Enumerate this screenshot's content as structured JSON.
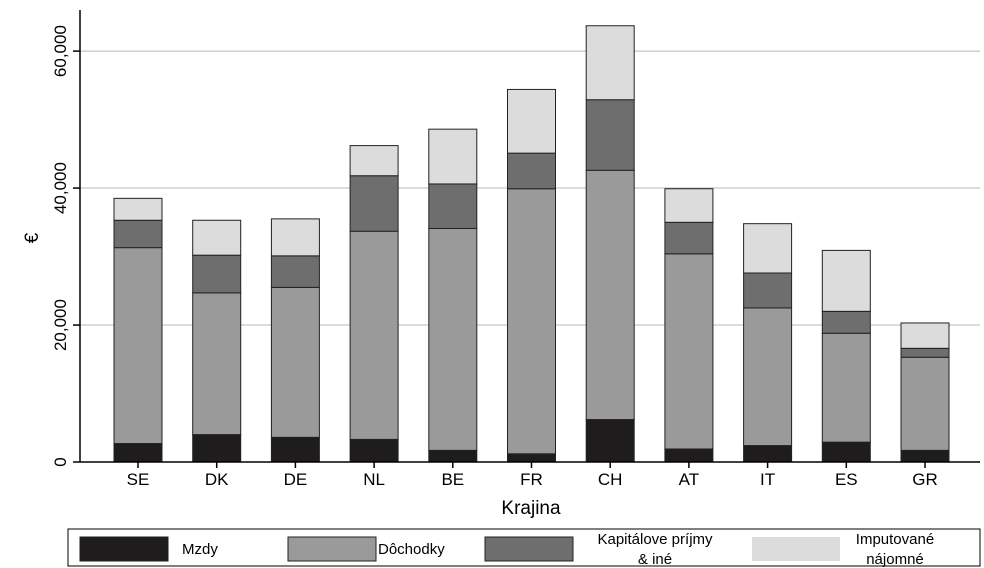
{
  "chart_data": {
    "type": "bar",
    "stacked": true,
    "xlabel": "Krajina",
    "ylabel": "€",
    "ylim": [
      0,
      66000
    ],
    "yticks": [
      0,
      20000,
      40000,
      60000
    ],
    "ytick_labels": [
      "0",
      "20,000",
      "40,000",
      "60,000"
    ],
    "grid": true,
    "legend_position": "bottom",
    "categories": [
      "SE",
      "DK",
      "DE",
      "NL",
      "BE",
      "FR",
      "CH",
      "AT",
      "IT",
      "ES",
      "GR"
    ],
    "series": [
      {
        "name": "Mzdy",
        "color": "#1e1c1c",
        "values": [
          2700,
          4000,
          3600,
          3300,
          1700,
          1200,
          6200,
          1900,
          2400,
          2900,
          1700
        ]
      },
      {
        "name": "Dôchodky",
        "color": "#9a9a9a",
        "values": [
          28600,
          20700,
          21900,
          30400,
          32400,
          38700,
          36400,
          28500,
          20100,
          15900,
          13600
        ]
      },
      {
        "name": "Kapitálove príjmy & iné",
        "color": "#6e6e6e",
        "values": [
          4000,
          5500,
          4600,
          8100,
          6500,
          5200,
          10300,
          4600,
          5100,
          3200,
          1300
        ]
      },
      {
        "name": "Imputované nájomné",
        "color": "#dcdcdc",
        "values": [
          3200,
          5100,
          5400,
          4400,
          8000,
          9300,
          10800,
          4900,
          7200,
          8900,
          3700
        ]
      }
    ],
    "legend": [
      {
        "line1": "Mzdy",
        "line2": ""
      },
      {
        "line1": "Dôchodky",
        "line2": ""
      },
      {
        "line1": "Kapitálove príjmy",
        "line2": "& iné"
      },
      {
        "line1": "Imputované",
        "line2": "nájomné"
      }
    ]
  }
}
